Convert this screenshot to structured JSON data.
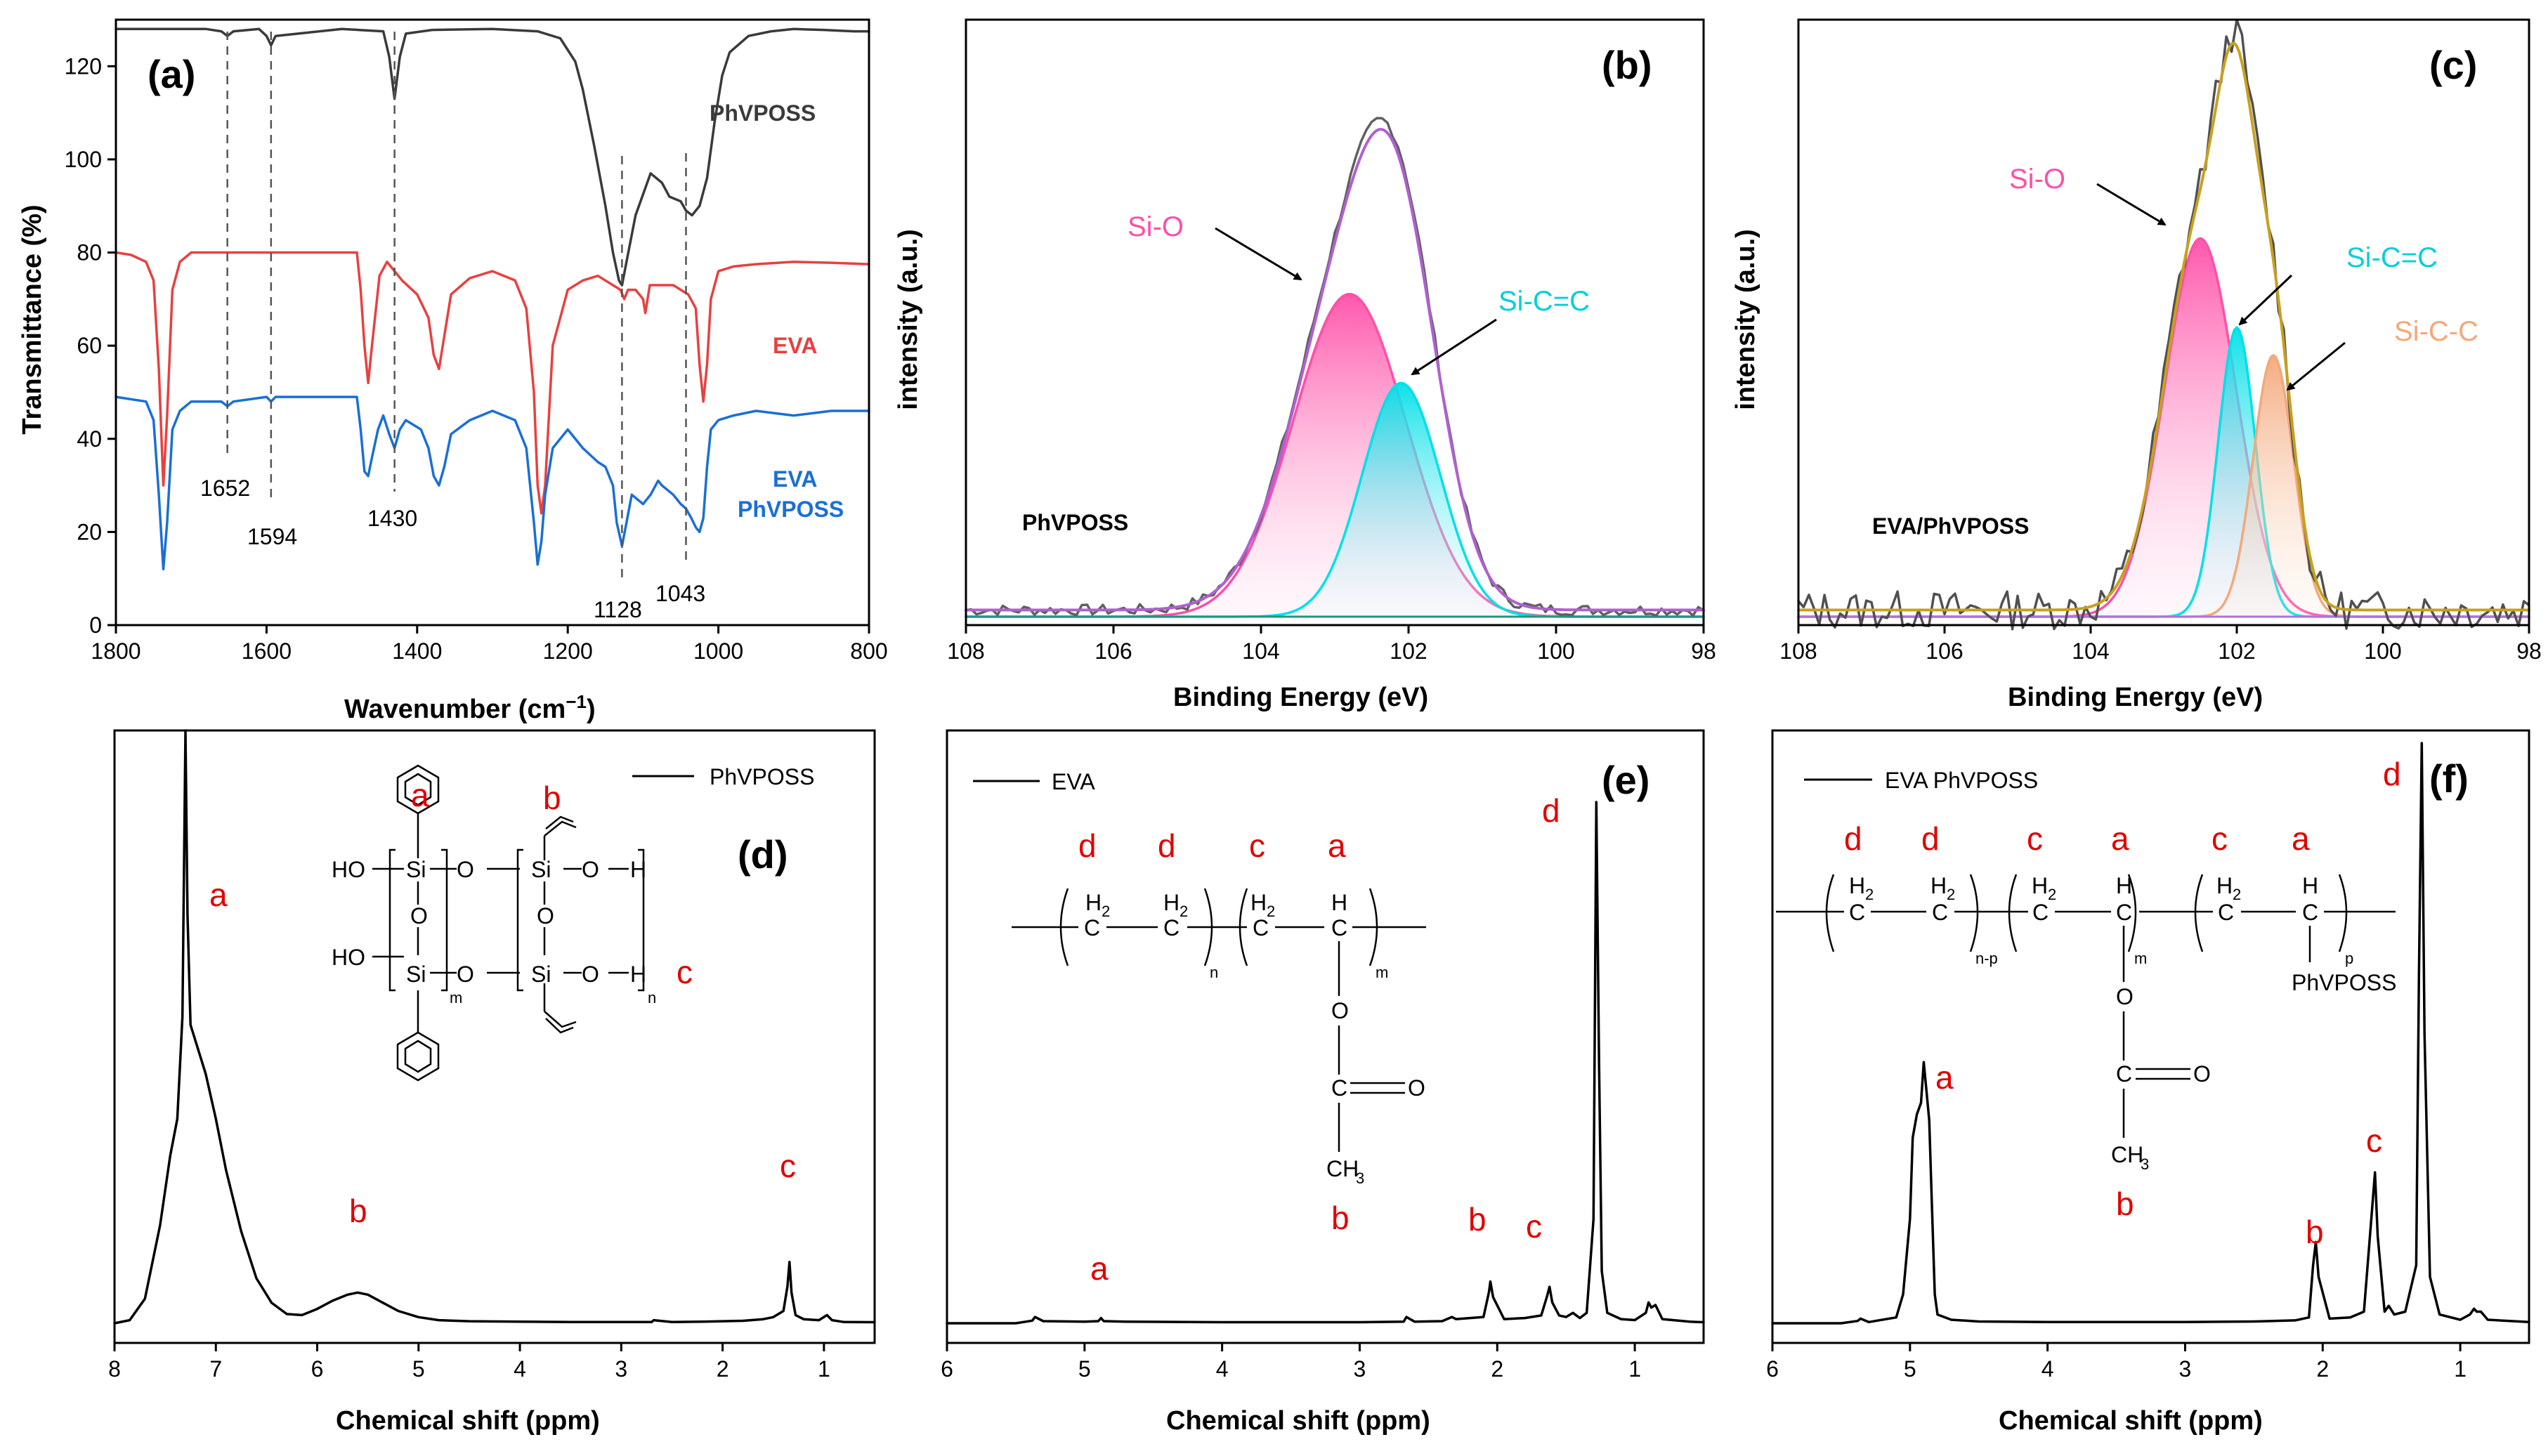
{
  "chart_data": [
    {
      "panel": "(a)",
      "type": "line",
      "xlabel": "Wavenumber (cm⁻¹)",
      "ylabel": "Transmittance (%)",
      "xlim": [
        1800,
        800
      ],
      "ylim": [
        0,
        130
      ],
      "xticks": [
        1800,
        1600,
        1400,
        1200,
        1000,
        800
      ],
      "yticks": [
        0,
        20,
        40,
        60,
        80,
        100,
        120
      ],
      "series": [
        {
          "name": "PhVPOSS",
          "color": "#3a3a3a",
          "x": [
            1800,
            1680,
            1660,
            1652,
            1644,
            1610,
            1600,
            1594,
            1588,
            1500,
            1445,
            1437,
            1430,
            1423,
            1415,
            1380,
            1300,
            1240,
            1210,
            1190,
            1180,
            1165,
            1150,
            1140,
            1132,
            1128,
            1122,
            1110,
            1090,
            1075,
            1065,
            1050,
            1043,
            1035,
            1025,
            1015,
            1005,
            995,
            985,
            960,
            930,
            900,
            860,
            820,
            800
          ],
          "values": [
            128,
            128,
            127.5,
            126.5,
            127.5,
            128,
            126.5,
            124.5,
            126.5,
            128,
            127.5,
            122,
            113,
            122,
            127,
            127.8,
            128,
            127.5,
            126,
            121,
            115,
            103,
            90,
            80,
            74,
            73,
            78,
            88,
            97,
            95,
            92,
            91,
            89,
            88,
            90,
            96,
            108,
            118,
            123,
            126.5,
            127.5,
            128,
            127.8,
            127.5,
            127.5
          ]
        },
        {
          "name": "EVA",
          "color": "#e84040",
          "x": [
            1800,
            1780,
            1760,
            1750,
            1743,
            1737,
            1732,
            1725,
            1715,
            1700,
            1600,
            1480,
            1475,
            1470,
            1465,
            1460,
            1450,
            1440,
            1420,
            1400,
            1385,
            1378,
            1371,
            1364,
            1355,
            1330,
            1300,
            1270,
            1255,
            1245,
            1240,
            1235,
            1230,
            1220,
            1200,
            1180,
            1160,
            1140,
            1130,
            1125,
            1120,
            1110,
            1100,
            1097,
            1094,
            1091,
            1080,
            1060,
            1040,
            1030,
            1025,
            1020,
            1015,
            1010,
            1000,
            980,
            950,
            900,
            850,
            800
          ],
          "values": [
            80,
            79.5,
            78,
            74,
            55,
            30,
            45,
            72,
            78,
            80,
            80,
            80,
            72,
            60,
            52,
            60,
            75,
            78,
            74,
            71,
            66,
            58,
            55,
            62,
            71,
            74.5,
            76,
            74,
            68,
            50,
            30,
            24,
            30,
            60,
            72,
            74,
            75,
            73,
            72,
            70,
            72,
            72,
            70,
            67,
            70,
            73,
            73,
            73,
            71,
            68,
            56,
            48,
            56,
            70,
            76,
            77,
            77.5,
            78,
            77.8,
            77.5
          ]
        },
        {
          "name": "EVA PhVPOSS",
          "color": "#1a6fd4",
          "x": [
            1800,
            1760,
            1750,
            1743,
            1737,
            1732,
            1725,
            1715,
            1700,
            1660,
            1652,
            1644,
            1600,
            1594,
            1588,
            1480,
            1475,
            1470,
            1465,
            1460,
            1452,
            1445,
            1437,
            1430,
            1423,
            1415,
            1395,
            1385,
            1378,
            1371,
            1364,
            1355,
            1330,
            1300,
            1270,
            1255,
            1245,
            1240,
            1235,
            1230,
            1220,
            1200,
            1180,
            1160,
            1150,
            1140,
            1135,
            1128,
            1122,
            1115,
            1100,
            1090,
            1080,
            1075,
            1060,
            1050,
            1043,
            1036,
            1030,
            1025,
            1020,
            1015,
            1010,
            1000,
            980,
            950,
            900,
            850,
            800
          ],
          "values": [
            49,
            48,
            44,
            28,
            12,
            22,
            42,
            46,
            48,
            48,
            47,
            48,
            49,
            48,
            49,
            49,
            42,
            33,
            32,
            36,
            42,
            45,
            41,
            38,
            42,
            44,
            42,
            38,
            32,
            30,
            34,
            41,
            44,
            46,
            44,
            38,
            22,
            13,
            18,
            28,
            38,
            42,
            38,
            35,
            34,
            30,
            22,
            17,
            22,
            28,
            26,
            28,
            31,
            30,
            28,
            26,
            25,
            23,
            21,
            20,
            23,
            34,
            42,
            44,
            45,
            46,
            45,
            46,
            46
          ]
        }
      ],
      "annotations": [
        "1652",
        "1594",
        "1430",
        "1128",
        "1043"
      ],
      "annotation_positions": [
        1652,
        1594,
        1430,
        1128,
        1043
      ]
    },
    {
      "panel": "(b)",
      "type": "line",
      "xlabel": "Binding Energy (eV)",
      "ylabel": "intensity (a.u.)",
      "xlim": [
        108,
        98
      ],
      "xticks": [
        108,
        106,
        104,
        102,
        100,
        98
      ],
      "sample": "PhVPOSS",
      "components": [
        {
          "name": "Si-O",
          "center": 102.8,
          "fwhm": 1.8,
          "height": 0.58,
          "color": "#ff4fa8"
        },
        {
          "name": "Si-C=C",
          "center": 102.1,
          "fwhm": 1.25,
          "height": 0.42,
          "color": "#00e0e8"
        }
      ],
      "envelope_color": "#b060d0",
      "raw_color": "#606060",
      "background_color": "#1a9a7a"
    },
    {
      "panel": "(c)",
      "type": "line",
      "xlabel": "Binding Energy (eV)",
      "ylabel": "intensity (a.u.)",
      "xlim": [
        108,
        98
      ],
      "xticks": [
        108,
        106,
        104,
        102,
        100,
        98
      ],
      "sample": "EVA/PhVPOSS",
      "components": [
        {
          "name": "Si-O",
          "center": 102.5,
          "fwhm": 1.15,
          "height": 0.68,
          "color": "#ff4fa8"
        },
        {
          "name": "Si-C=C",
          "center": 102.0,
          "fwhm": 0.6,
          "height": 0.52,
          "color": "#00e0e8"
        },
        {
          "name": "Si-C-C",
          "center": 101.5,
          "fwhm": 0.65,
          "height": 0.47,
          "color": "#f4a87a"
        }
      ],
      "envelope_color": "#c8a020",
      "raw_color": "#505050",
      "background_color": "#b070e0"
    },
    {
      "panel": "(d)",
      "type": "line",
      "xlabel": "Chemical shift (ppm)",
      "xlim": [
        8,
        0.5
      ],
      "xticks": [
        8,
        7,
        6,
        5,
        4,
        3,
        2,
        1
      ],
      "legend": "PhVPOSS",
      "x": [
        8.0,
        7.85,
        7.7,
        7.55,
        7.45,
        7.38,
        7.33,
        7.3,
        7.28,
        7.25,
        7.2,
        7.1,
        7.0,
        6.9,
        6.75,
        6.6,
        6.45,
        6.3,
        6.15,
        6.0,
        5.85,
        5.7,
        5.6,
        5.5,
        5.35,
        5.2,
        5.0,
        4.8,
        4.5,
        4.0,
        3.5,
        3.0,
        2.7,
        2.68,
        2.5,
        2.2,
        2.0,
        1.8,
        1.6,
        1.5,
        1.4,
        1.36,
        1.34,
        1.32,
        1.28,
        1.2,
        1.05,
        0.97,
        0.92,
        0.8,
        0.5
      ],
      "values": [
        0.0,
        0.015,
        0.12,
        0.48,
        0.82,
        1.0,
        1.5,
        2.9,
        2.0,
        1.46,
        1.38,
        1.22,
        1.0,
        0.75,
        0.45,
        0.22,
        0.1,
        0.045,
        0.04,
        0.07,
        0.11,
        0.14,
        0.15,
        0.14,
        0.1,
        0.06,
        0.03,
        0.015,
        0.01,
        0.008,
        0.006,
        0.006,
        0.006,
        0.015,
        0.006,
        0.008,
        0.01,
        0.012,
        0.02,
        0.03,
        0.06,
        0.18,
        0.3,
        0.15,
        0.04,
        0.02,
        0.015,
        0.04,
        0.015,
        0.006,
        0.005
      ],
      "peak_labels": [
        "a",
        "b",
        "c"
      ]
    },
    {
      "panel": "(e)",
      "type": "line",
      "xlabel": "Chemical shift (ppm)",
      "xlim": [
        6,
        0.5
      ],
      "xticks": [
        6,
        5,
        4,
        3,
        2,
        1
      ],
      "legend": "EVA",
      "x": [
        6.0,
        5.5,
        5.38,
        5.36,
        5.3,
        5.0,
        4.9,
        4.88,
        4.86,
        4.7,
        4.0,
        3.0,
        2.68,
        2.66,
        2.6,
        2.4,
        2.33,
        2.3,
        2.2,
        2.1,
        2.06,
        2.05,
        2.03,
        1.95,
        1.8,
        1.68,
        1.64,
        1.62,
        1.6,
        1.55,
        1.5,
        1.45,
        1.4,
        1.35,
        1.3,
        1.28,
        1.26,
        1.24,
        1.2,
        1.1,
        1.0,
        0.92,
        0.9,
        0.88,
        0.85,
        0.8,
        0.6,
        0.5
      ],
      "values": [
        0.0,
        0.0,
        0.005,
        0.012,
        0.004,
        0.003,
        0.004,
        0.01,
        0.004,
        0.003,
        0.002,
        0.002,
        0.003,
        0.012,
        0.003,
        0.004,
        0.012,
        0.008,
        0.01,
        0.012,
        0.06,
        0.08,
        0.05,
        0.008,
        0.01,
        0.015,
        0.05,
        0.07,
        0.04,
        0.015,
        0.012,
        0.02,
        0.01,
        0.02,
        0.2,
        1.0,
        0.5,
        0.1,
        0.02,
        0.008,
        0.006,
        0.02,
        0.04,
        0.03,
        0.035,
        0.008,
        0.003,
        0.002
      ],
      "peak_labels": [
        "a",
        "b",
        "c",
        "d"
      ]
    },
    {
      "panel": "(f)",
      "type": "line",
      "xlabel": "Chemical shift (ppm)",
      "xlim": [
        6,
        0.5
      ],
      "xticks": [
        6,
        5,
        4,
        3,
        2,
        1
      ],
      "legend": "EVA PhVPOSS",
      "x": [
        6.0,
        5.5,
        5.38,
        5.36,
        5.3,
        5.1,
        5.05,
        5.0,
        4.98,
        4.95,
        4.92,
        4.9,
        4.88,
        4.86,
        4.84,
        4.82,
        4.8,
        4.7,
        4.5,
        4.0,
        3.0,
        2.5,
        2.2,
        2.1,
        2.07,
        2.05,
        2.03,
        1.95,
        1.8,
        1.7,
        1.64,
        1.62,
        1.6,
        1.55,
        1.52,
        1.48,
        1.4,
        1.32,
        1.3,
        1.28,
        1.26,
        1.22,
        1.15,
        1.0,
        0.93,
        0.9,
        0.88,
        0.85,
        0.8,
        0.5
      ],
      "values": [
        0.0,
        0.0,
        0.004,
        0.008,
        0.002,
        0.01,
        0.05,
        0.18,
        0.32,
        0.36,
        0.38,
        0.45,
        0.4,
        0.35,
        0.2,
        0.05,
        0.015,
        0.006,
        0.003,
        0.002,
        0.002,
        0.003,
        0.005,
        0.01,
        0.1,
        0.14,
        0.08,
        0.008,
        0.01,
        0.02,
        0.2,
        0.26,
        0.15,
        0.02,
        0.03,
        0.015,
        0.02,
        0.1,
        0.6,
        1.0,
        0.5,
        0.08,
        0.015,
        0.006,
        0.015,
        0.025,
        0.02,
        0.02,
        0.006,
        0.002
      ],
      "peak_labels": [
        "a",
        "b",
        "c",
        "d"
      ]
    }
  ],
  "panel_a": {
    "label": "(a)",
    "series_labels": [
      "PhVPOSS",
      "EVA",
      "EVA",
      "PhVPOSS"
    ],
    "peak_annotations": [
      "1652",
      "1594",
      "1430",
      "1128",
      "1043"
    ],
    "xlabel_main": "Wavenumber (cm",
    "xlabel_sup": "−1",
    "xlabel_close": ")"
  },
  "panel_b": {
    "label": "(b)",
    "sample": "PhVPOSS",
    "peak1": "Si-O",
    "peak2": "Si-C=C"
  },
  "panel_c": {
    "label": "(c)",
    "sample": "EVA/PhVPOSS",
    "peak1": "Si-O",
    "peak2": "Si-C=C",
    "peak3": "Si-C-C"
  },
  "panel_d": {
    "label": "(d)",
    "legend": "PhVPOSS",
    "peaks": [
      "a",
      "b",
      "c"
    ],
    "structure": {
      "ring_label": "a",
      "vinyl_label": "b",
      "end_label": "c",
      "ho1": "HO",
      "ho2": "HO",
      "si": "Si",
      "o": "O",
      "h": "H",
      "sub_m": "m",
      "sub_n": "n"
    }
  },
  "panel_e": {
    "label": "(e)",
    "legend": "EVA",
    "peaks": [
      "a",
      "b",
      "c",
      "d"
    ],
    "structure": {
      "labels": [
        "d",
        "d",
        "c",
        "a"
      ],
      "ch3_label": "b",
      "top_label": "d",
      "h2": "H",
      "h2_sub": "2",
      "h": "H",
      "c": "C",
      "o": "O",
      "ch3": "CH",
      "ch3_sub": "3",
      "sub_n": "n",
      "sub_m": "m"
    }
  },
  "panel_f": {
    "label": "(f)",
    "legend": "EVA PhVPOSS",
    "peaks": [
      "a",
      "b",
      "c",
      "d"
    ],
    "structure": {
      "labels": [
        "d",
        "d",
        "c",
        "a",
        "c",
        "a"
      ],
      "ch3_label": "b",
      "top_label": "d",
      "h2": "H",
      "h2_sub": "2",
      "h": "H",
      "c": "C",
      "o": "O",
      "ch3": "CH",
      "ch3_sub": "3",
      "sub_np": "n-p",
      "sub_m": "m",
      "sub_p": "p",
      "phvposs": "PhVPOSS"
    }
  },
  "colors": {
    "phvposs": "#3a3a3a",
    "eva": "#e84040",
    "evaposs": "#1a6fd4",
    "letters": "#e00000",
    "sio": "#ff4fa8",
    "sicc": "#00e0e8",
    "sicc2": "#f4a87a"
  }
}
